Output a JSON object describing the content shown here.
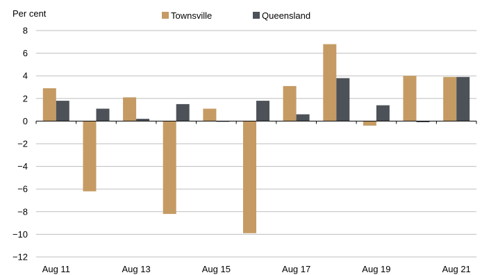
{
  "chart_data": {
    "type": "bar",
    "title": "",
    "ylabel": "Per cent",
    "xlabel": "",
    "categories": [
      "Aug 11",
      "Aug 12",
      "Aug 13",
      "Aug 14",
      "Aug 15",
      "Aug 16",
      "Aug 17",
      "Aug 18",
      "Aug 19",
      "Aug 20",
      "Aug 21"
    ],
    "tick_labels": [
      "Aug 11",
      "Aug 13",
      "Aug 15",
      "Aug 17",
      "Aug 19",
      "Aug 21"
    ],
    "y_ticks": [
      "8",
      "6",
      "4",
      "2",
      "0",
      "−2",
      "−4",
      "−6",
      "−8",
      "−10",
      "−12"
    ],
    "ylim": [
      -12,
      8
    ],
    "grid": true,
    "legend_position": "top-center",
    "series": [
      {
        "name": "Townsville",
        "color": "#c59b63",
        "values": [
          2.9,
          -6.2,
          2.1,
          -8.2,
          1.1,
          -9.9,
          3.1,
          6.8,
          -0.4,
          4.0,
          3.9
        ]
      },
      {
        "name": "Queensland",
        "color": "#4d5259",
        "values": [
          1.8,
          1.1,
          0.2,
          1.5,
          0.0,
          1.8,
          0.6,
          3.8,
          1.4,
          -0.1,
          3.9
        ]
      }
    ]
  }
}
